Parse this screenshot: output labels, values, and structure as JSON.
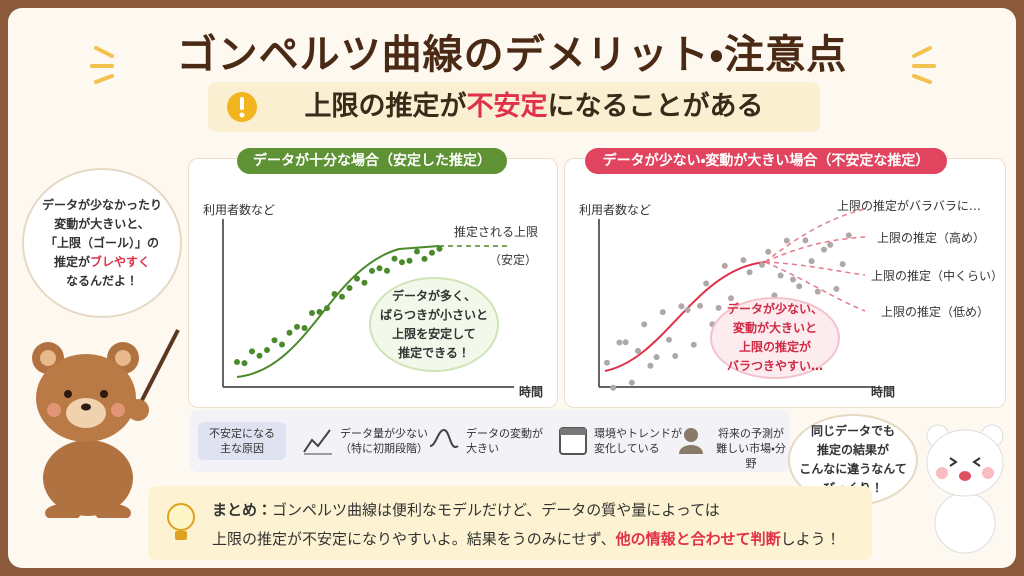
{
  "header": {
    "title": "ゴンペルツ曲線のデメリット・注意点",
    "subtitle": [
      "上限の推定が",
      "不安定",
      "になることがある"
    ]
  },
  "left_bubble": {
    "lines": [
      "データが少なかったり",
      "変動が大きいと、",
      "「上限（ゴール）」の"
    ],
    "line4": [
      "推定が",
      "ブレやすく"
    ],
    "line5": "なるんだよ！"
  },
  "stable_panel": {
    "header": "データが十分な場合（安定した推定）",
    "y_label": "利用者数など",
    "x_label": "時間",
    "upper_label": "推定される上限",
    "upper_note": "（安定）",
    "bubble": [
      "データが多く、",
      "ばらつきが小さいと",
      "上限を安定して",
      "推定できる！"
    ]
  },
  "unstable_panel": {
    "header": "データが少ない・変動が大きい場合（不安定な推定）",
    "y_label": "利用者数など",
    "x_label": "時間",
    "scatter_label": "上限の推定がバラバラに…",
    "estimates": [
      "上限の推定（高め）",
      "上限の推定（中くらい）",
      "上限の推定（低め）"
    ],
    "bubble": [
      "データが少ない、",
      "変動が大きいと",
      "上限の推定が",
      "バラつきやすい…"
    ]
  },
  "causes": {
    "label": [
      "不安定になる",
      "主な原因"
    ],
    "items": [
      [
        "データ量が少ない",
        "（特に初期段階）"
      ],
      [
        "データの変動が",
        "大きい"
      ],
      [
        "環境やトレンドが",
        "変化している"
      ],
      [
        "将来の予測が",
        "難しい市場・分野"
      ]
    ]
  },
  "right_bubble": [
    "同じデータでも",
    "推定の結果が",
    "こんなに違うなんて",
    "びっくり！"
  ],
  "summary": {
    "label": "まとめ：",
    "line1": "ゴンペルツ曲線は便利なモデルだけど、データの質や量によっては",
    "line2": [
      "上限の推定が不安定になりやすいよ。結果をうのみにせず、",
      "他の情報と合わせて判断",
      "しよう！"
    ]
  }
}
